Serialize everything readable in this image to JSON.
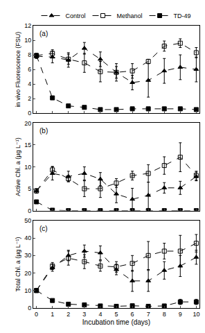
{
  "chart_data": [
    {
      "type": "line",
      "title": "(a)",
      "ylabel": "in vivo Fluorescence (FSU)",
      "x": [
        0,
        1,
        2,
        3,
        4,
        5,
        6,
        7,
        8,
        9,
        10
      ],
      "xlim": [
        -0.2,
        10.2
      ],
      "xticks": [
        0,
        1,
        2,
        3,
        4,
        5,
        6,
        7,
        8,
        9,
        10
      ],
      "ylim": [
        0,
        12
      ],
      "yticks": [
        0,
        2,
        4,
        6,
        8,
        10,
        12
      ],
      "legend": "top",
      "tick_labels": "y",
      "line_style": "dashed",
      "series": [
        {
          "name": "Control",
          "color": "#000000",
          "marker": "triangle",
          "values": [
            7.8,
            7.7,
            7.3,
            8.9,
            7.4,
            5.6,
            4.2,
            4.5,
            5.8,
            6.3,
            6.0
          ],
          "error": [
            0.3,
            0.8,
            1.0,
            0.8,
            1.0,
            1.2,
            1.0,
            2.3,
            1.7,
            1.7,
            1.7
          ]
        },
        {
          "name": "Methanol",
          "color": "#000000",
          "marker": "square-open",
          "values": [
            7.9,
            8.2,
            7.4,
            6.9,
            5.7,
            5.6,
            5.8,
            7.1,
            9.2,
            9.6,
            8.3
          ],
          "error": [
            0.3,
            0.5,
            0.7,
            1.3,
            1.4,
            0.8,
            1.0,
            0.3,
            0.7,
            0.6,
            0.7
          ]
        },
        {
          "name": "TD-49",
          "color": "#000000",
          "marker": "square",
          "values": [
            7.9,
            2.1,
            1.0,
            0.8,
            0.5,
            0.5,
            0.6,
            0.6,
            0.6,
            0.6,
            0.5
          ],
          "error": [
            0.2,
            0.2,
            0.1,
            0.1,
            0.1,
            0.1,
            0.1,
            0.1,
            0.1,
            0.1,
            0.1
          ]
        }
      ]
    },
    {
      "type": "line",
      "title": "(b)",
      "ylabel": "Active Chl. a (µg L⁻¹)",
      "x": [
        0,
        1,
        2,
        3,
        4,
        5,
        6,
        7,
        8,
        9,
        10
      ],
      "xlim": [
        -0.2,
        10.2
      ],
      "xticks": [
        0,
        1,
        2,
        3,
        4,
        5,
        6,
        7,
        8,
        9,
        10
      ],
      "ylim": [
        0,
        20
      ],
      "yticks": [
        0,
        5,
        10,
        15,
        20
      ],
      "tick_labels": "y",
      "line_style": "dashed",
      "series": [
        {
          "name": "Control",
          "color": "#000000",
          "marker": "triangle",
          "values": [
            4.5,
            8.5,
            7.8,
            8.5,
            7.2,
            3.8,
            2.6,
            3.5,
            5.2,
            5.2,
            7.8
          ],
          "error": [
            0.5,
            1.5,
            1.2,
            1.5,
            1.5,
            2.0,
            2.5,
            3.0,
            1.2,
            1.5,
            1.0
          ]
        },
        {
          "name": "Methanol",
          "color": "#000000",
          "marker": "square-open",
          "values": [
            4.5,
            9.3,
            7.3,
            5.0,
            5.0,
            6.3,
            8.0,
            8.5,
            10.3,
            12.2,
            8.0
          ],
          "error": [
            0.5,
            0.8,
            0.7,
            1.8,
            2.0,
            1.0,
            1.0,
            2.0,
            2.0,
            3.3,
            1.0
          ]
        },
        {
          "name": "TD-49",
          "color": "#000000",
          "marker": "square",
          "values": [
            2.0,
            0.1,
            0,
            0,
            0,
            0,
            0,
            0,
            0,
            0,
            0
          ],
          "error": [
            0.2,
            0.1,
            0,
            0,
            0,
            0,
            0,
            0,
            0,
            0,
            0
          ]
        }
      ]
    },
    {
      "type": "line",
      "title": "(c)",
      "ylabel": "Total Chl. a (µg L⁻¹)",
      "xlabel": "Incubation time (days)",
      "x": [
        0,
        1,
        2,
        3,
        4,
        5,
        6,
        7,
        8,
        9,
        10
      ],
      "xlim": [
        -0.2,
        10.2
      ],
      "xticks": [
        0,
        1,
        2,
        3,
        4,
        5,
        6,
        7,
        8,
        9,
        10
      ],
      "ylim": [
        0,
        50
      ],
      "yticks": [
        0,
        10,
        20,
        30,
        40,
        50
      ],
      "line_style": "dashed",
      "series": [
        {
          "name": "Control",
          "color": "#000000",
          "marker": "triangle",
          "values": [
            10,
            23,
            30,
            32.5,
            31.5,
            22,
            15.5,
            15.5,
            21.5,
            24,
            29
          ],
          "error": [
            0.8,
            2,
            3,
            3.5,
            4,
            3,
            6,
            6,
            5,
            6,
            4
          ]
        },
        {
          "name": "Methanol",
          "color": "#000000",
          "marker": "square-open",
          "values": [
            10,
            24,
            28.5,
            26.5,
            24,
            23.5,
            25.5,
            30,
            32.5,
            32.5,
            37
          ],
          "error": [
            0.8,
            2,
            4,
            4,
            3,
            3,
            4.5,
            8,
            4.5,
            9,
            5
          ]
        },
        {
          "name": "TD-49",
          "color": "#000000",
          "marker": "square",
          "values": [
            10,
            4.3,
            2.2,
            1.8,
            1.2,
            1.0,
            1.3,
            1.0,
            1.2,
            3.5,
            3.5
          ],
          "error": [
            0.5,
            0.5,
            0.3,
            0.3,
            0.3,
            0.3,
            0.3,
            0.3,
            0.3,
            1.5,
            1.5
          ]
        }
      ]
    }
  ]
}
